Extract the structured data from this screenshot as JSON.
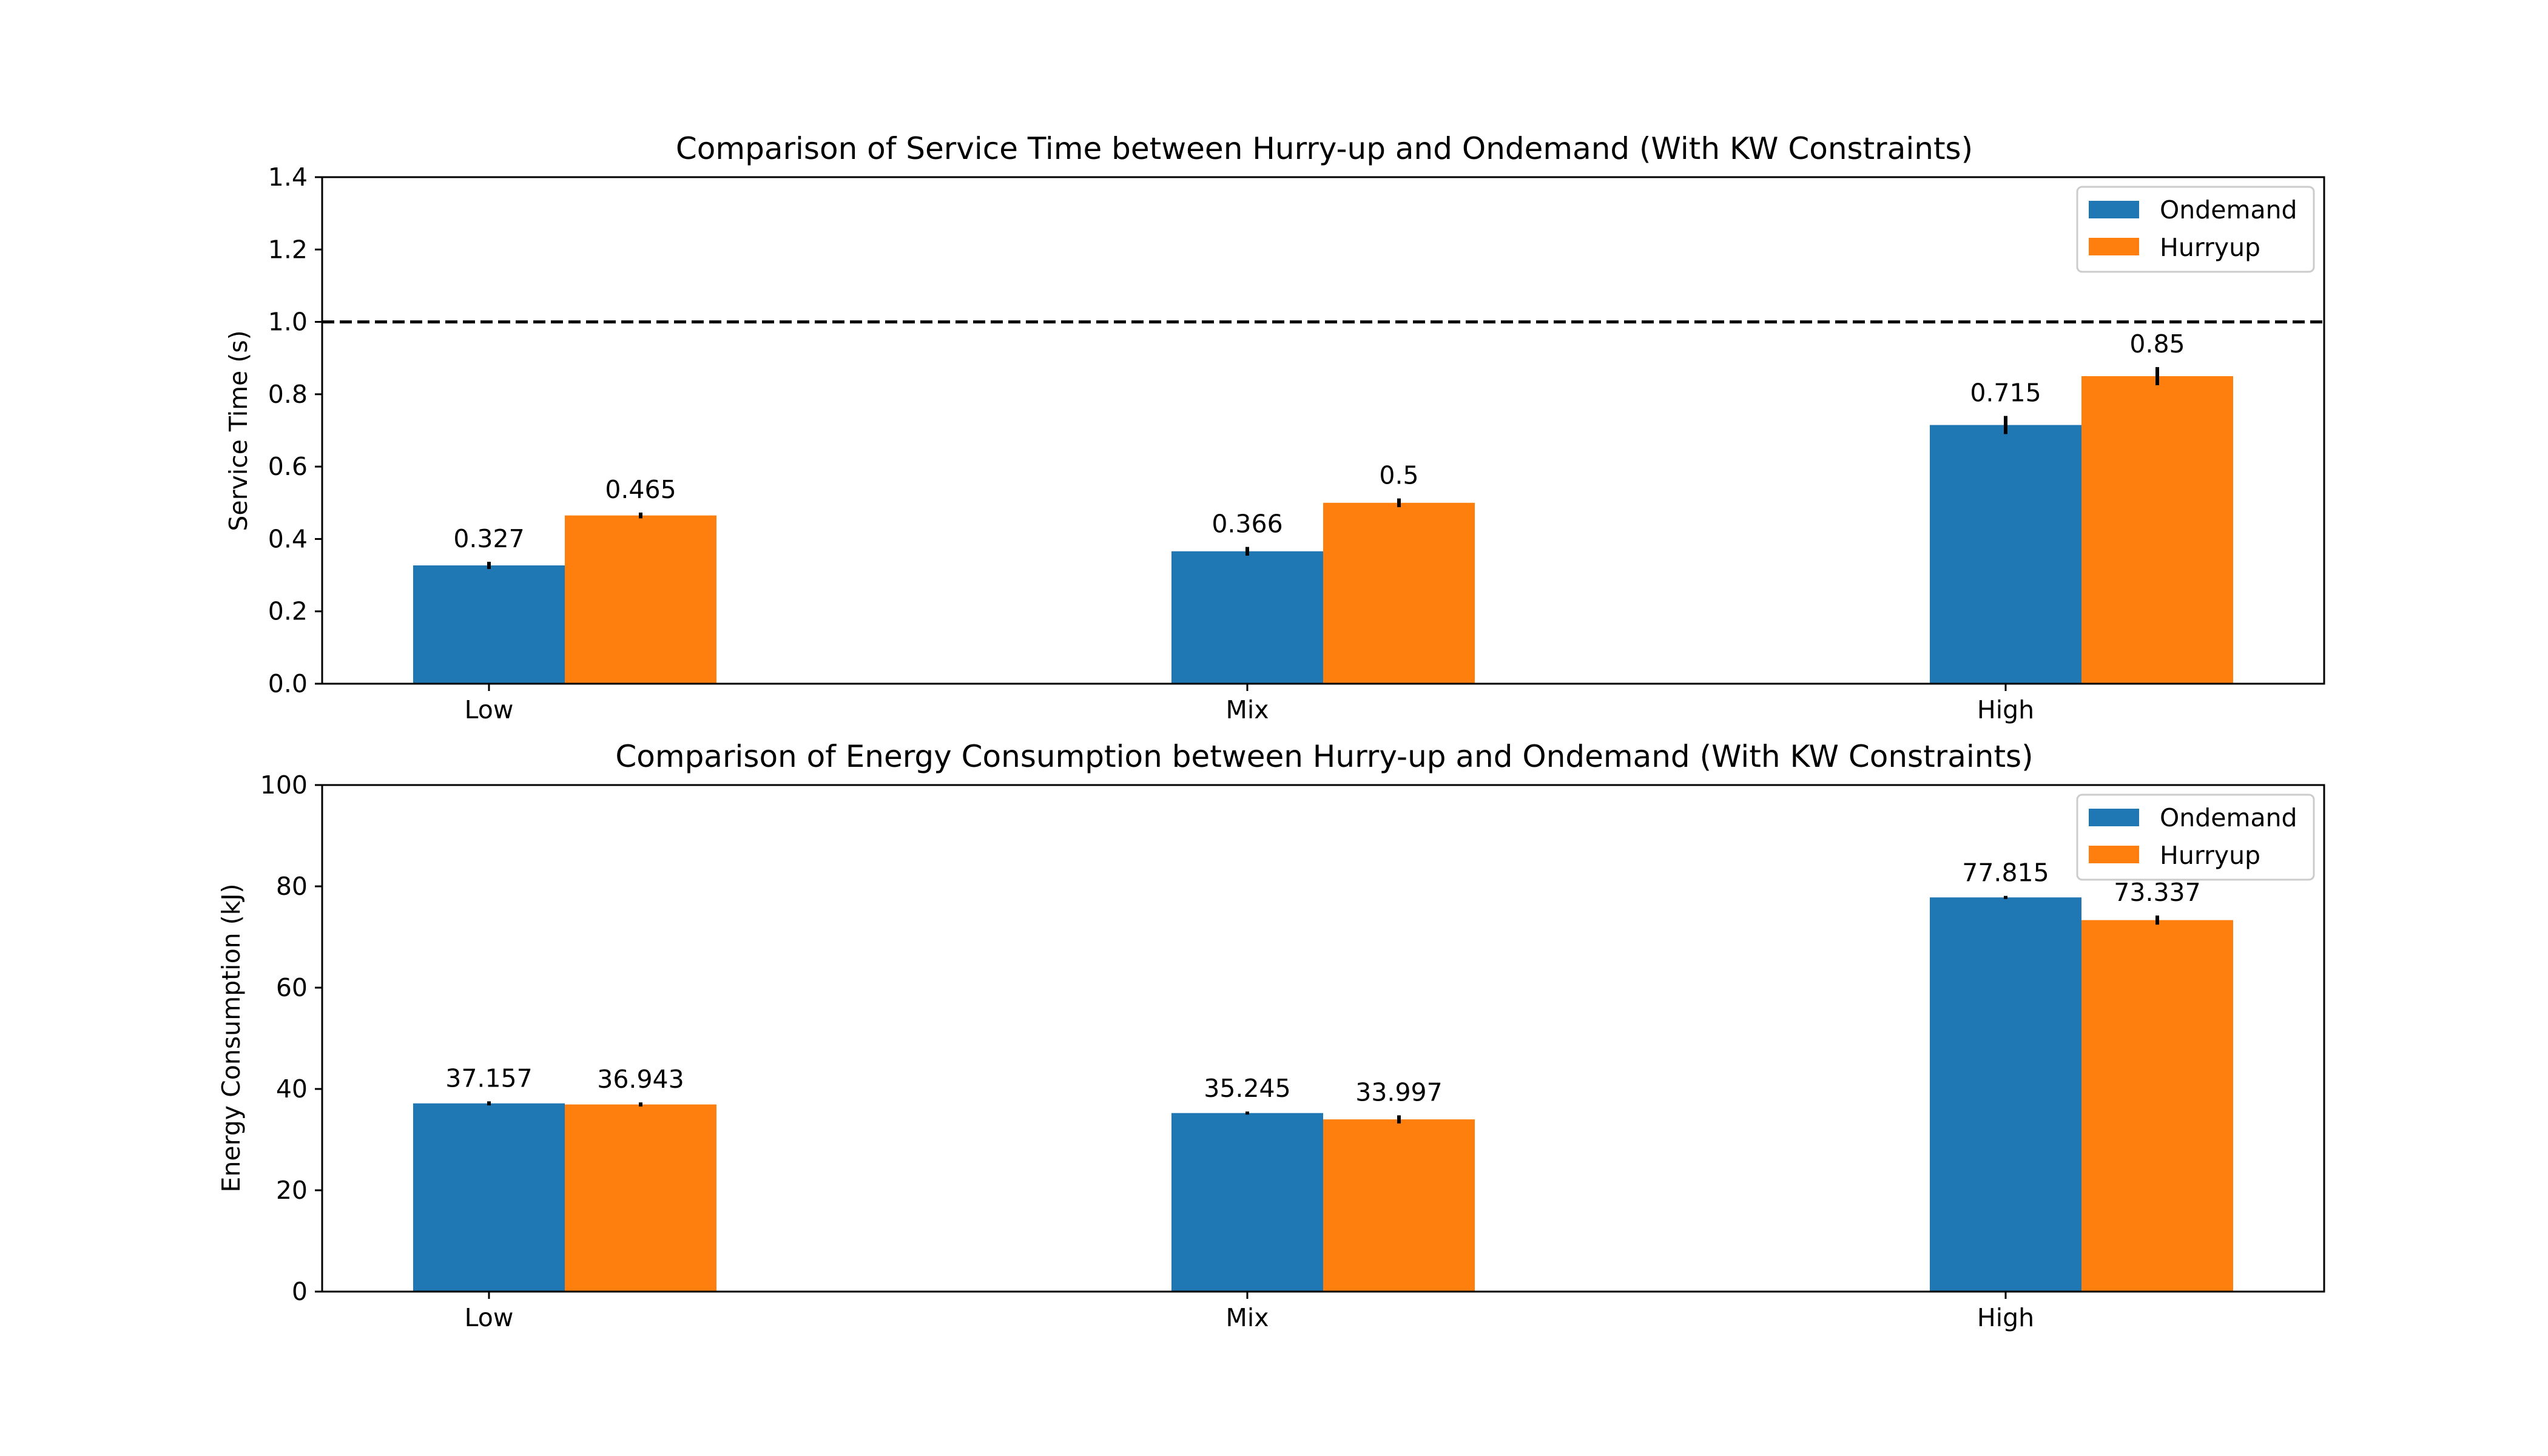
{
  "chart_data": [
    {
      "type": "bar",
      "title": "Comparison of Service Time between Hurry-up and Ondemand (With KW Constraints)",
      "xlabel": "",
      "ylabel": "Service Time (s)",
      "categories": [
        "Low",
        "Mix",
        "High"
      ],
      "ylim": [
        0,
        1.4
      ],
      "yticks": [
        "0.0",
        "0.2",
        "0.4",
        "0.6",
        "0.8",
        "1.0",
        "1.2",
        "1.4"
      ],
      "reference_line": {
        "y": 1.0,
        "style": "dashed",
        "color": "#000000"
      },
      "series": [
        {
          "name": "Ondemand",
          "color": "#1f77b4",
          "values": [
            0.327,
            0.366,
            0.715
          ],
          "labels": [
            "0.327",
            "0.366",
            "0.715"
          ],
          "errors": [
            0.01,
            0.012,
            0.025
          ]
        },
        {
          "name": "Hurryup",
          "color": "#ff7f0e",
          "values": [
            0.465,
            0.5,
            0.85
          ],
          "labels": [
            "0.465",
            "0.5",
            "0.85"
          ],
          "errors": [
            0.008,
            0.012,
            0.025
          ]
        }
      ],
      "legend": "top-right",
      "grid": false
    },
    {
      "type": "bar",
      "title": "Comparison of Energy Consumption between Hurry-up and Ondemand (With KW Constraints)",
      "xlabel": "",
      "ylabel": "Energy Consumption (kJ)",
      "categories": [
        "Low",
        "Mix",
        "High"
      ],
      "ylim": [
        0,
        100
      ],
      "yticks": [
        "0",
        "20",
        "40",
        "60",
        "80",
        "100"
      ],
      "series": [
        {
          "name": "Ondemand",
          "color": "#1f77b4",
          "values": [
            37.157,
            35.245,
            77.815
          ],
          "labels": [
            "37.157",
            "35.245",
            "77.815"
          ],
          "errors": [
            0.4,
            0.3,
            0.3
          ]
        },
        {
          "name": "Hurryup",
          "color": "#ff7f0e",
          "values": [
            36.943,
            33.997,
            73.337
          ],
          "labels": [
            "36.943",
            "33.997",
            "73.337"
          ],
          "errors": [
            0.4,
            0.8,
            0.9
          ]
        }
      ],
      "legend": "top-right",
      "grid": false
    }
  ]
}
